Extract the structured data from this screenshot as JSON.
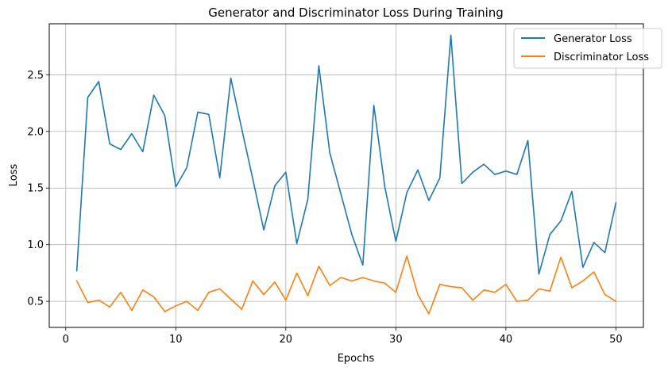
{
  "chart_data": {
    "type": "line",
    "title": "Generator and Discriminator Loss During Training",
    "xlabel": "Epochs",
    "ylabel": "Loss",
    "xlim": [
      -1.5,
      52.5
    ],
    "ylim": [
      0.27,
      2.95
    ],
    "xticks": [
      0,
      10,
      20,
      30,
      40,
      50
    ],
    "yticks": [
      0.5,
      1.0,
      1.5,
      2.0,
      2.5
    ],
    "ytick_labels": [
      "0.5",
      "1.0",
      "1.5",
      "2.0",
      "2.5"
    ],
    "grid": true,
    "legend_position": "top-right",
    "x": [
      1,
      2,
      3,
      4,
      5,
      6,
      7,
      8,
      9,
      10,
      11,
      12,
      13,
      14,
      15,
      16,
      17,
      18,
      19,
      20,
      21,
      22,
      23,
      24,
      25,
      26,
      27,
      28,
      29,
      30,
      31,
      32,
      33,
      34,
      35,
      36,
      37,
      38,
      39,
      40,
      41,
      42,
      43,
      44,
      45,
      46,
      47,
      48,
      49,
      50
    ],
    "series": [
      {
        "name": "Generator Loss",
        "color": "#1f77b4",
        "values": [
          0.77,
          2.3,
          2.44,
          1.89,
          1.84,
          1.98,
          1.82,
          2.32,
          2.14,
          1.51,
          1.68,
          2.17,
          2.15,
          1.59,
          2.47,
          2.02,
          1.58,
          1.13,
          1.52,
          1.64,
          1.01,
          1.4,
          2.58,
          1.81,
          1.45,
          1.09,
          0.82,
          2.23,
          1.51,
          1.03,
          1.46,
          1.66,
          1.39,
          1.59,
          2.85,
          1.54,
          1.64,
          1.71,
          1.62,
          1.65,
          1.62,
          1.92,
          0.74,
          1.09,
          1.21,
          1.47,
          0.8,
          1.02,
          0.93,
          1.37
        ]
      },
      {
        "name": "Discriminator Loss",
        "color": "#ff7f0e",
        "values": [
          0.68,
          0.49,
          0.51,
          0.45,
          0.58,
          0.42,
          0.6,
          0.54,
          0.41,
          0.46,
          0.5,
          0.42,
          0.58,
          0.61,
          0.52,
          0.43,
          0.68,
          0.56,
          0.67,
          0.51,
          0.75,
          0.55,
          0.81,
          0.64,
          0.71,
          0.68,
          0.71,
          0.68,
          0.66,
          0.58,
          0.9,
          0.56,
          0.39,
          0.65,
          0.63,
          0.62,
          0.51,
          0.6,
          0.58,
          0.65,
          0.5,
          0.51,
          0.61,
          0.59,
          0.89,
          0.62,
          0.68,
          0.76,
          0.56,
          0.5
        ]
      }
    ]
  }
}
